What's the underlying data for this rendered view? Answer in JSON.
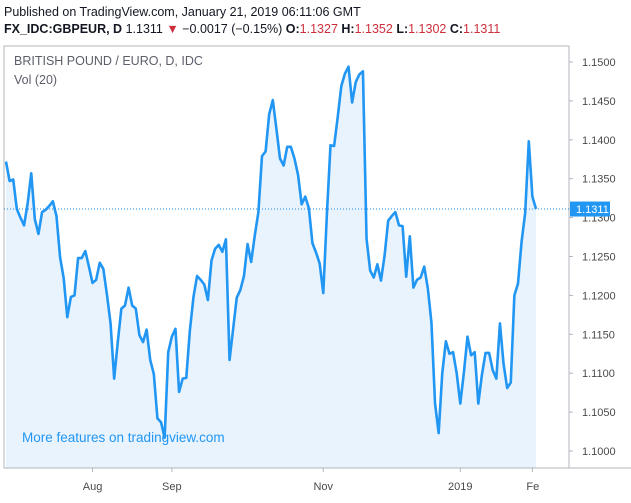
{
  "header": {
    "published": "Published on TradingView.com, January 21, 2019 06:11:06 GMT",
    "symbol": "FX_IDC:GBPEUR, D",
    "last": "1.1311",
    "change": "−0.0017 (−0.15%)",
    "o_label": "O:",
    "o_value": "1.1327",
    "h_label": "H:",
    "h_value": "1.1352",
    "l_label": "L:",
    "l_value": "1.1302",
    "c_label": "C:",
    "c_value": "1.1311"
  },
  "colors": {
    "line": "#2196f3",
    "fill": "#e9f3fd",
    "down": "#cc2f3c",
    "text": "#131722"
  },
  "chart_data": {
    "type": "area",
    "title": "BRITISH POUND / EURO, D, IDC",
    "subtitle": "Vol (20)",
    "watermark": "More features on tradingview.com",
    "last_price_label": "1.1311",
    "last_price": 1.1311,
    "ylim": [
      1.0975,
      1.1515
    ],
    "yticks": [
      1.1,
      1.105,
      1.11,
      1.115,
      1.12,
      1.125,
      1.13,
      1.135,
      1.14,
      1.145,
      1.15
    ],
    "ytick_labels": [
      "1.1000",
      "1.1050",
      "1.1100",
      "1.1150",
      "1.1200",
      "1.1250",
      "1.1300",
      "1.1350",
      "1.1400",
      "1.1450",
      "1.1500"
    ],
    "xlim": [
      0,
      141
    ],
    "xticks": [
      {
        "label": "Aug",
        "i": 24
      },
      {
        "label": "Sep",
        "i": 46
      },
      {
        "label": "Nov",
        "i": 88
      },
      {
        "label": "2019",
        "i": 126
      },
      {
        "label": "Fe",
        "i": 146
      }
    ],
    "values": [
      1.1372,
      1.1347,
      1.1349,
      1.1311,
      1.13,
      1.129,
      1.1318,
      1.1357,
      1.1298,
      1.1279,
      1.1307,
      1.131,
      1.1315,
      1.1321,
      1.1302,
      1.1249,
      1.1222,
      1.1172,
      1.1198,
      1.12,
      1.1248,
      1.1248,
      1.1257,
      1.1237,
      1.1216,
      1.122,
      1.1242,
      1.1234,
      1.1201,
      1.1164,
      1.1093,
      1.114,
      1.1183,
      1.1187,
      1.121,
      1.1187,
      1.1183,
      1.1149,
      1.114,
      1.1156,
      1.1117,
      1.1099,
      1.1042,
      1.1037,
      1.1017,
      1.1127,
      1.1147,
      1.1157,
      1.1076,
      1.1093,
      1.1094,
      1.1155,
      1.1198,
      1.1225,
      1.122,
      1.1214,
      1.1194,
      1.1245,
      1.126,
      1.1265,
      1.1256,
      1.1272,
      1.1117,
      1.1157,
      1.1197,
      1.1207,
      1.1225,
      1.1266,
      1.1243,
      1.1277,
      1.1307,
      1.1379,
      1.1385,
      1.1433,
      1.1451,
      1.1414,
      1.1376,
      1.1367,
      1.1391,
      1.1391,
      1.1376,
      1.1355,
      1.1317,
      1.1327,
      1.1312,
      1.1267,
      1.1255,
      1.1241,
      1.1203,
      1.1304,
      1.1393,
      1.1392,
      1.1429,
      1.1469,
      1.1485,
      1.1494,
      1.1448,
      1.1474,
      1.1484,
      1.1488,
      1.1273,
      1.1232,
      1.1223,
      1.124,
      1.1219,
      1.1251,
      1.1296,
      1.1302,
      1.1307,
      1.129,
      1.1289,
      1.1224,
      1.1276,
      1.121,
      1.122,
      1.1223,
      1.1237,
      1.1209,
      1.1165,
      1.1061,
      1.1023,
      1.11,
      1.1141,
      1.1125,
      1.1127,
      1.11,
      1.1061,
      1.1101,
      1.1147,
      1.1123,
      1.1127,
      1.1061,
      1.1098,
      1.1126,
      1.1126,
      1.1104,
      1.1093,
      1.1164,
      1.1112,
      1.1081,
      1.1088,
      1.12,
      1.1215,
      1.1269,
      1.1306,
      1.1398,
      1.1327,
      1.1311
    ]
  }
}
